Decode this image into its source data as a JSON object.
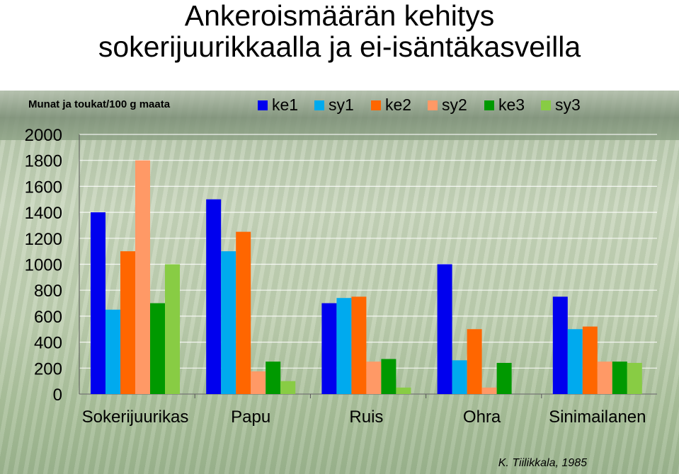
{
  "title_line1": "Ankeroismäärän kehitys",
  "title_line2": "sokerijuurikkaalla ja ei-isäntäkasveilla",
  "caption": "K. Tiilikkala, 1985",
  "chart_data": {
    "type": "bar",
    "title": "Ankeroismäärän kehitys sokerijuurikkaalla ja ei-isäntäkasveilla",
    "ylabel": "Munat ja toukat/100 g maata",
    "xlabel": "",
    "ylim": [
      0,
      2000
    ],
    "yticks": [
      0,
      200,
      400,
      600,
      800,
      1000,
      1200,
      1400,
      1600,
      1800,
      2000
    ],
    "grid": true,
    "legend_position": "top-right",
    "categories": [
      "Sokerijuurikas",
      "Papu",
      "Ruis",
      "Ohra",
      "Sinimailanen"
    ],
    "series": [
      {
        "name": "ke1",
        "color": "#0000ee",
        "values": [
          1400,
          1500,
          700,
          1000,
          750
        ]
      },
      {
        "name": "sy1",
        "color": "#00aaee",
        "values": [
          650,
          1100,
          740,
          260,
          500
        ]
      },
      {
        "name": "ke2",
        "color": "#ff6600",
        "values": [
          1100,
          1250,
          750,
          500,
          520
        ]
      },
      {
        "name": "sy2",
        "color": "#ff9966",
        "values": [
          1800,
          175,
          250,
          50,
          250
        ]
      },
      {
        "name": "ke3",
        "color": "#009900",
        "values": [
          700,
          250,
          270,
          240,
          250
        ]
      },
      {
        "name": "sy3",
        "color": "#88cc44",
        "values": [
          1000,
          100,
          50,
          0,
          240
        ]
      }
    ]
  }
}
